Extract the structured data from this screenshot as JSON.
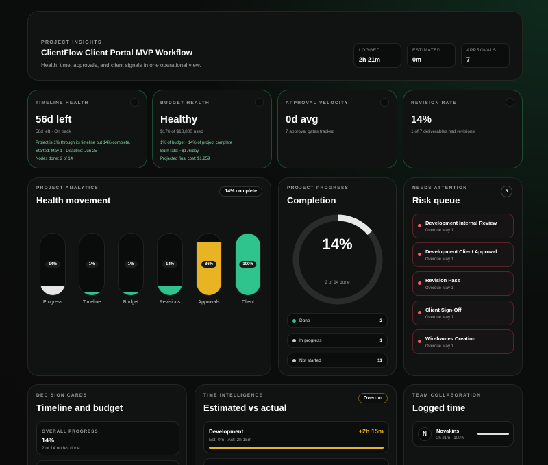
{
  "hero": {
    "eyebrow": "PROJECT INSIGHTS",
    "title": "ClientFlow Client Portal MVP Workflow",
    "subtitle": "Health, time, approvals, and client signals in one operational view.",
    "stats": [
      {
        "label": "LOGGED",
        "value": "2h 21m"
      },
      {
        "label": "ESTIMATED",
        "value": "0m"
      },
      {
        "label": "APPROVALS",
        "value": "7"
      }
    ]
  },
  "metrics": {
    "timeline": {
      "eyebrow": "TIMELINE HEALTH",
      "value": "56d left",
      "sub": "56d left · On track",
      "lines": [
        "Project is 1% through its timeline but 14% complete.",
        "Started: May 1 · Deadline: Jun 25",
        "Nodes done: 2 of 14"
      ]
    },
    "budget": {
      "eyebrow": "BUDGET HEALTH",
      "value": "Healthy",
      "sub": "$176 of $18,800 used",
      "lines": [
        "1% of budget · 14% of project complete",
        "Burn rate: ~$176/day",
        "Projected final cost: $1,259"
      ]
    },
    "approval": {
      "eyebrow": "APPROVAL VELOCITY",
      "value": "0d avg",
      "sub": "7 approval gates tracked"
    },
    "revision": {
      "eyebrow": "REVISION RATE",
      "value": "14%",
      "sub": "1 of 7 deliverables had revisions"
    }
  },
  "analytics": {
    "eyebrow": "PROJECT ANALYTICS",
    "title": "Health movement",
    "badge": "14% complete",
    "bars": [
      {
        "label": "Progress",
        "tag": "14%",
        "fill": 0.14,
        "color": "#e6e6e6"
      },
      {
        "label": "Timeline",
        "tag": "1%",
        "fill": 0.04,
        "color": "#2fc38d"
      },
      {
        "label": "Budget",
        "tag": "1%",
        "fill": 0.04,
        "color": "#2fc38d"
      },
      {
        "label": "Revisions",
        "tag": "14%",
        "fill": 0.14,
        "color": "#2fc38d"
      },
      {
        "label": "Approvals",
        "tag": "86%",
        "fill": 0.86,
        "color": "#e8b423"
      },
      {
        "label": "Client",
        "tag": "100%",
        "fill": 1.0,
        "color": "#2fc38d"
      }
    ]
  },
  "progress": {
    "eyebrow": "PROJECT PROGRESS",
    "title": "Completion",
    "percent_text": "14%",
    "percent": 0.14,
    "sub": "2 of 14 done",
    "legend": [
      {
        "label": "Done",
        "value": "2",
        "color": "#2fc38d"
      },
      {
        "label": "In progress",
        "value": "1",
        "color": "#c9c9c9"
      },
      {
        "label": "Not started",
        "value": "11",
        "color": "#c9c9c9"
      }
    ]
  },
  "risk": {
    "eyebrow": "NEEDS ATTENTION",
    "title": "Risk queue",
    "count": "5",
    "items": [
      {
        "title": "Development Internal Review",
        "sub": "Overdue May 1"
      },
      {
        "title": "Development Client Approval",
        "sub": "Overdue May 1"
      },
      {
        "title": "Revision Pass",
        "sub": "Overdue May 1"
      },
      {
        "title": "Client Sign-Off",
        "sub": "Overdue May 1"
      },
      {
        "title": "Wireframes Creation",
        "sub": "Overdue May 1"
      }
    ]
  },
  "decision": {
    "eyebrow": "DECISION CARDS",
    "title": "Timeline and budget",
    "overall_label": "OVERALL PROGRESS",
    "overall_value": "14%",
    "overall_sub": "2 of 14 nodes done"
  },
  "time": {
    "eyebrow": "TIME INTELLIGENCE",
    "title": "Estimated vs actual",
    "badge": "Overrun",
    "row": {
      "name": "Development",
      "delta": "+2h 15m",
      "sub": "Est: 0m · Act: 2h 15m",
      "fill": 1.0
    }
  },
  "team": {
    "eyebrow": "TEAM COLLABORATION",
    "title": "Logged time",
    "member": {
      "initial": "N",
      "name": "Novakins",
      "sub": "2h 21m · 100%",
      "fill": 1.0
    }
  },
  "colors": {
    "green": "#2fc38d",
    "amber": "#e8b423",
    "red": "#f25c6b"
  }
}
